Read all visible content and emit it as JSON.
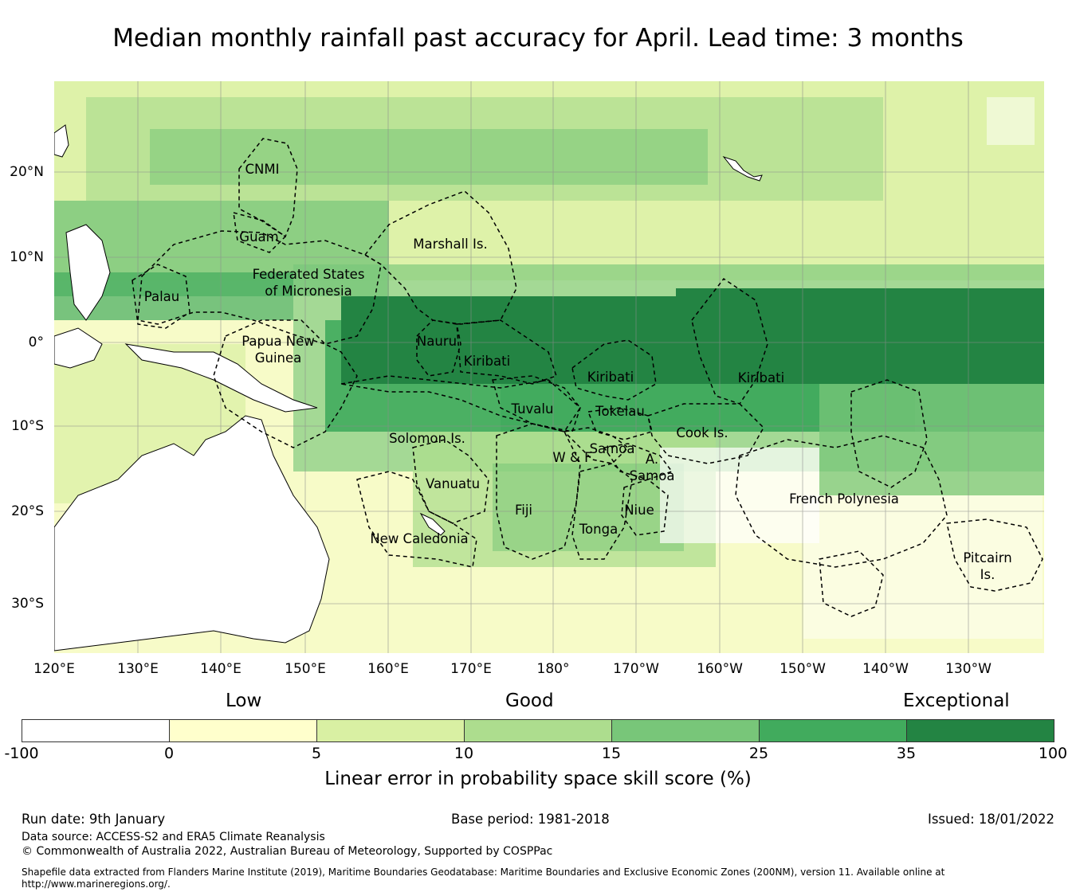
{
  "title": "Median monthly rainfall past accuracy for April. Lead time: 3 months",
  "map": {
    "lon_labels": [
      "120°E",
      "130°E",
      "140°E",
      "150°E",
      "160°E",
      "170°E",
      "180°",
      "170°W",
      "160°W",
      "150°W",
      "140°W",
      "130°W"
    ],
    "lat_labels": [
      "20°N",
      "10°N",
      "0°",
      "10°S",
      "20°S",
      "30°S"
    ],
    "regions": [
      "CNMI",
      "Guam",
      "Marshall Is.",
      "Palau",
      "Federated States",
      "of Micronesia",
      "Papua New",
      "Guinea",
      "Nauru",
      "Kiribati",
      "Kiribati",
      "Kiribati",
      "Tuvalu",
      "Tokelau",
      "Cook Is.",
      "Solomon Is.",
      "Samoa",
      "W & F",
      "A.",
      "Samoa",
      "Vanuatu",
      "Fiji",
      "Niue",
      "Tonga",
      "New Caledonia",
      "French Polynesia",
      "Pitcairn",
      "Is."
    ]
  },
  "legend": {
    "categories": [
      "Low",
      "Good",
      "Exceptional"
    ],
    "ticks": [
      "-100",
      "0",
      "5",
      "10",
      "15",
      "25",
      "35",
      "100"
    ],
    "colors": [
      "#ffffff",
      "#ffffcc",
      "#d9f0a3",
      "#addd8e",
      "#78c679",
      "#41ab5d",
      "#238443"
    ],
    "title": "Linear error in probability space skill score (%)"
  },
  "footer": {
    "run_date": "Run date: 9th January",
    "base_period": "Base period: 1981-2018",
    "issued": "Issued: 18/01/2022",
    "data_source": "Data source: ACCESS-S2 and ERA5 Climate Reanalysis",
    "copyright": "© Commonwealth of Australia 2022, Australian Bureau of Meteorology, Supported by COSPPac",
    "shapefile_note": "Shapefile data extracted from Flanders Marine Institute (2019), Maritime Boundaries Geodatabase: Maritime Boundaries and Exclusive Economic Zones (200NM), version 11. Available online at",
    "shapefile_url": "http://www.marineregions.org/."
  }
}
